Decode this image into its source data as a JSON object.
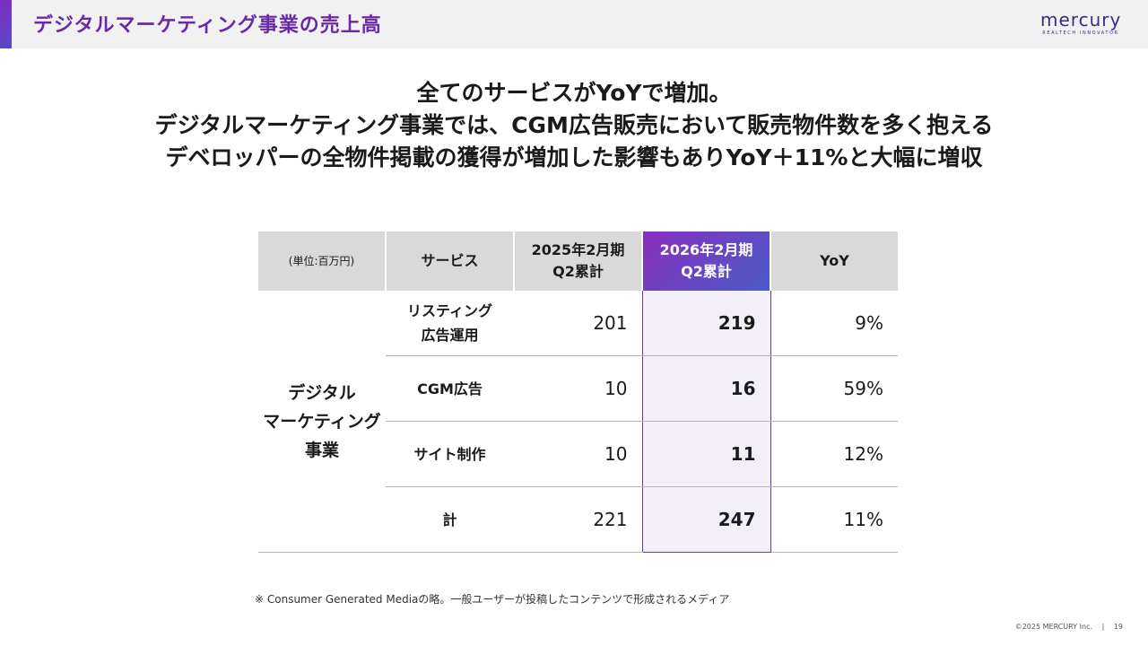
{
  "header": {
    "title": "デジタルマーケティング事業の売上高",
    "logo_name": "mercury",
    "logo_tagline": "REALTECH INNOVATOR",
    "brand_color": "#6a2aa8"
  },
  "headline": {
    "line1": "全てのサービスがYoYで増加。",
    "line2": "デジタルマーケティング事業では、CGM広告販売において販売物件数を多く抱える",
    "line3": "デベロッパーの全物件掲載の獲得が増加した影響もありYoY＋11%と大幅に増収"
  },
  "table": {
    "headers": {
      "unit": "(単位:百万円)",
      "service": "サービス",
      "prev_line1": "2025年2月期",
      "prev_line2": "Q2累計",
      "curr_line1": "2026年2月期",
      "curr_line2": "Q2累計",
      "yoy": "YoY"
    },
    "segment": {
      "line1": "デジタル",
      "line2": "マーケティング",
      "line3": "事業"
    },
    "rows": [
      {
        "service_line1": "リスティング",
        "service_line2": "広告運用",
        "prev": "201",
        "curr": "219",
        "yoy": "9%"
      },
      {
        "service_line1": "CGM広告",
        "service_line2": "",
        "prev": "10",
        "curr": "16",
        "yoy": "59%"
      },
      {
        "service_line1": "サイト制作",
        "service_line2": "",
        "prev": "10",
        "curr": "11",
        "yoy": "12%"
      },
      {
        "service_line1": "計",
        "service_line2": "",
        "prev": "221",
        "curr": "247",
        "yoy": "11%"
      }
    ]
  },
  "footnote": "※ Consumer Generated Mediaの略。一般ユーザーが投稿したコンテンツで形成されるメディア",
  "footer": {
    "copyright": "©2025 MERCURY Inc.",
    "separator": "|",
    "page_number": "19"
  }
}
